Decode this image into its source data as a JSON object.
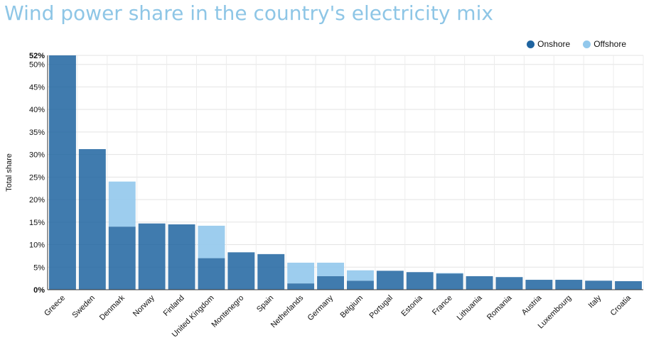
{
  "title": "Wind power share in the country's electricity mix",
  "legend": {
    "onshore": "Onshore",
    "offshore": "Offshore"
  },
  "colors": {
    "onshore": "#1f64a0",
    "offshore": "#92c8ec"
  },
  "chart_data": {
    "type": "bar",
    "stacked": true,
    "title": "Wind power share in the country's electricity mix",
    "xlabel": "",
    "ylabel": "Total share",
    "ylim": [
      0,
      52
    ],
    "yticks": [
      "0%",
      "5%",
      "10%",
      "15%",
      "20%",
      "25%",
      "30%",
      "35%",
      "40%",
      "45%",
      "50%",
      "52%"
    ],
    "ytick_values": [
      0,
      5,
      10,
      15,
      20,
      25,
      30,
      35,
      40,
      45,
      50,
      52
    ],
    "legend_position": "top-right",
    "grid": true,
    "categories": [
      "Greece",
      "Sweden",
      "Denmark",
      "Norway",
      "Finland",
      "United Kingdom",
      "Montenegro",
      "Spain",
      "Netherlands",
      "Germany",
      "Belgium",
      "Portugal",
      "Estonia",
      "France",
      "Lithuania",
      "Romania",
      "Austria",
      "Luxembourg",
      "Italy",
      "Croatia"
    ],
    "series": [
      {
        "name": "Onshore",
        "values": [
          52,
          31.2,
          14,
          14.7,
          14.5,
          7,
          8.3,
          7.9,
          1.4,
          3,
          2,
          4.2,
          3.9,
          3.6,
          3,
          2.8,
          2.2,
          2.2,
          2,
          1.9
        ]
      },
      {
        "name": "Offshore",
        "values": [
          0,
          0,
          10,
          0,
          0,
          7.2,
          0,
          0,
          4.6,
          3,
          2.3,
          0,
          0,
          0.1,
          0,
          0,
          0,
          0,
          0,
          0
        ]
      }
    ]
  }
}
